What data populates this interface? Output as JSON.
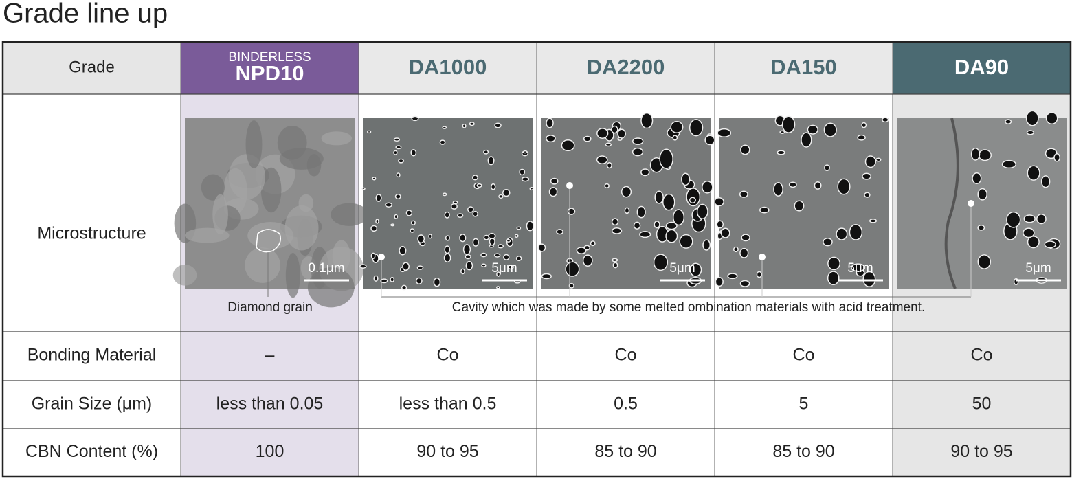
{
  "title": "Grade line up",
  "table": {
    "header_label": "Grade",
    "columns": [
      {
        "pre": "BINDERLESS",
        "grade": "NPD10"
      },
      {
        "grade": "DA1000"
      },
      {
        "grade": "DA2200"
      },
      {
        "grade": "DA150"
      },
      {
        "grade": "DA90"
      }
    ],
    "microstructure": {
      "label": "Microstructure",
      "scale_bars": [
        "0.1μm",
        "5μm",
        "5μm",
        "5μm",
        "5μm"
      ],
      "grain_note": "Diamond grain",
      "cavity_note": "Cavity which was made by some melted ombination materials with acid treatment."
    },
    "rows": [
      {
        "label": "Bonding Material",
        "cells": [
          "–",
          "Co",
          "Co",
          "Co",
          "Co"
        ]
      },
      {
        "label": "Grain Size (μm)",
        "cells": [
          "less than 0.05",
          "less than 0.5",
          "0.5",
          "5",
          "50"
        ]
      },
      {
        "label": "CBN Content (%)",
        "cells": [
          "100",
          "90 to 95",
          "85 to 90",
          "85 to 90",
          "90 to 95"
        ]
      }
    ]
  }
}
